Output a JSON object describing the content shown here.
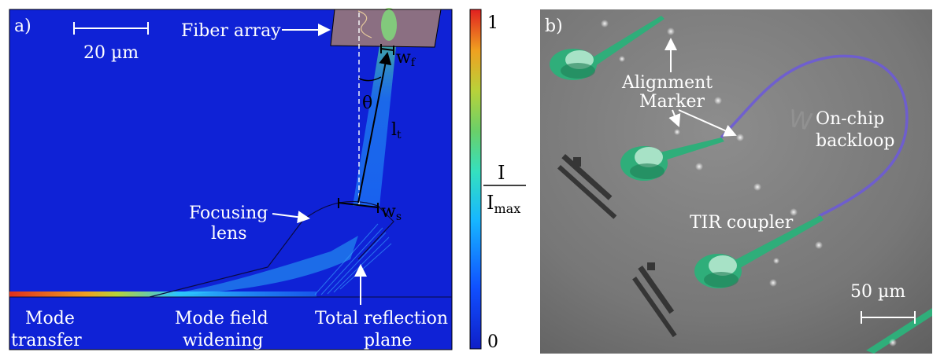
{
  "panel_a": {
    "tag": "a)",
    "scale_bar": "20 µm",
    "fiber_array": "Fiber array",
    "w_f_main": "w",
    "w_f_sub": "f",
    "theta": "θ",
    "l_t_main": "l",
    "l_t_sub": "t",
    "w_s_main": "w",
    "w_s_sub": "s",
    "focusing_lens_line1": "Focusing",
    "focusing_lens_line2": "lens",
    "mode_transfer_line1": "Mode",
    "mode_transfer_line2": "transfer",
    "mode_field_line1": "Mode field",
    "mode_field_line2": "widening",
    "total_refl_line1": "Total reflection",
    "total_refl_line2": "plane"
  },
  "colorbar": {
    "max_label": "1",
    "min_label": "0",
    "ratio_top": "I",
    "ratio_bottom_main": "I",
    "ratio_bottom_sub": "max",
    "colors": [
      "#0f1fc8",
      "#1050ff",
      "#17b7ff",
      "#34e0c0",
      "#69d06a",
      "#b8d23a",
      "#f0a020",
      "#e02020"
    ]
  },
  "panel_b": {
    "tag": "b)",
    "alignment_line1": "Alignment",
    "alignment_line2": "Marker",
    "backloop_line1": "On-chip",
    "backloop_line2": "backloop",
    "tir": "TIR coupler",
    "scale_bar": "50 µm",
    "coupler_color": "#2fae7a",
    "loop_color": "#6d5bd6"
  }
}
